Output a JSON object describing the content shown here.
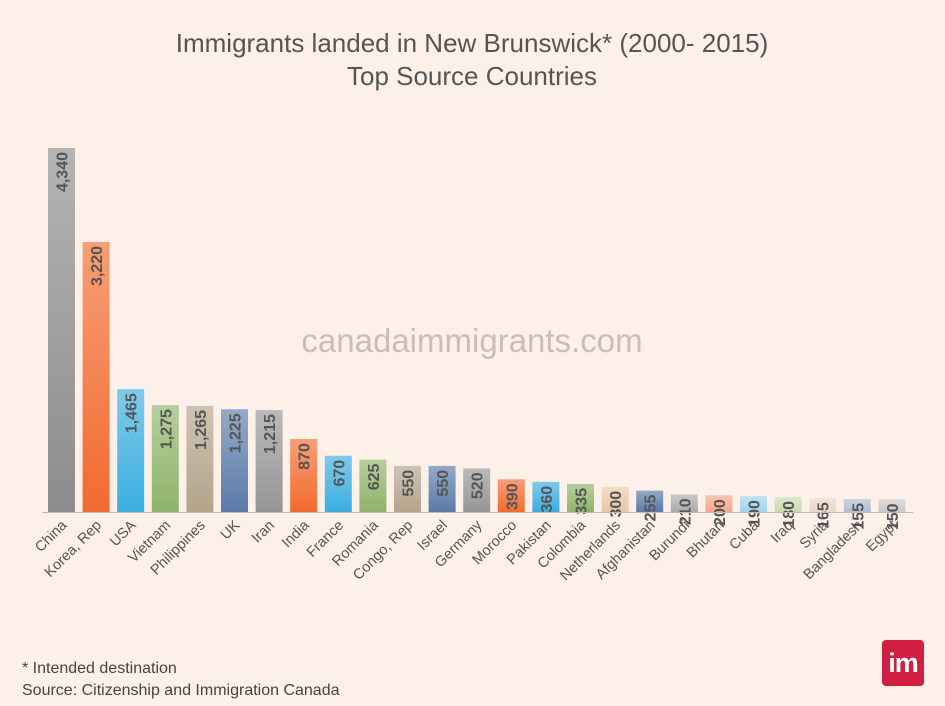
{
  "chart_data": {
    "type": "bar",
    "title": "Immigrants landed in New Brunswick* (2000- 2015)",
    "subtitle": "Top Source Countries",
    "watermark": "canadaimmigrants.com",
    "categories": [
      "China",
      "Korea, Rep",
      "USA",
      "Vietnam",
      "Philippines",
      "UK",
      "Iran",
      "India",
      "France",
      "Romania",
      "Congo, Rep",
      "Israel",
      "Germany",
      "Morocco",
      "Pakistan",
      "Colombia",
      "Netherlands",
      "Afghanistan",
      "Burundi",
      "Bhutan",
      "Cuba",
      "Iraq",
      "Syria",
      "Bangladesh",
      "Egypt"
    ],
    "values": [
      4340,
      3220,
      1465,
      1275,
      1265,
      1225,
      1215,
      870,
      670,
      625,
      550,
      550,
      520,
      390,
      360,
      335,
      300,
      255,
      210,
      200,
      190,
      180,
      165,
      155,
      150
    ],
    "value_labels": [
      "4,340",
      "3,220",
      "1,465",
      "1,275",
      "1,265",
      "1,225",
      "1,215",
      "870",
      "670",
      "625",
      "550",
      "550",
      "520",
      "390",
      "360",
      "335",
      "300",
      "255",
      "210",
      "200",
      "190",
      "180",
      "165",
      "155",
      "150"
    ],
    "colors": [
      "#8c8c8c",
      "#f26a2e",
      "#3aaee0",
      "#8fb36a",
      "#b3a48a",
      "#5a7aa8",
      "#959595",
      "#f26a2e",
      "#3aaee0",
      "#8fb36a",
      "#b3a48a",
      "#5a7aa8",
      "#959595",
      "#f26a2e",
      "#3aaee0",
      "#8fb36a",
      "#e8c9a4",
      "#5a7aa8",
      "#aaaaaa",
      "#f5a58a",
      "#9fd4f0",
      "#c8dcae",
      "#e8d6c4",
      "#b0bdd4",
      "#c9c9c9"
    ],
    "ylim": [
      0,
      4600
    ],
    "grid": false,
    "legend": "none"
  },
  "footnote": "* Intended destination",
  "source": "Source: Citizenship and Immigration Canada",
  "logo_text": "im"
}
